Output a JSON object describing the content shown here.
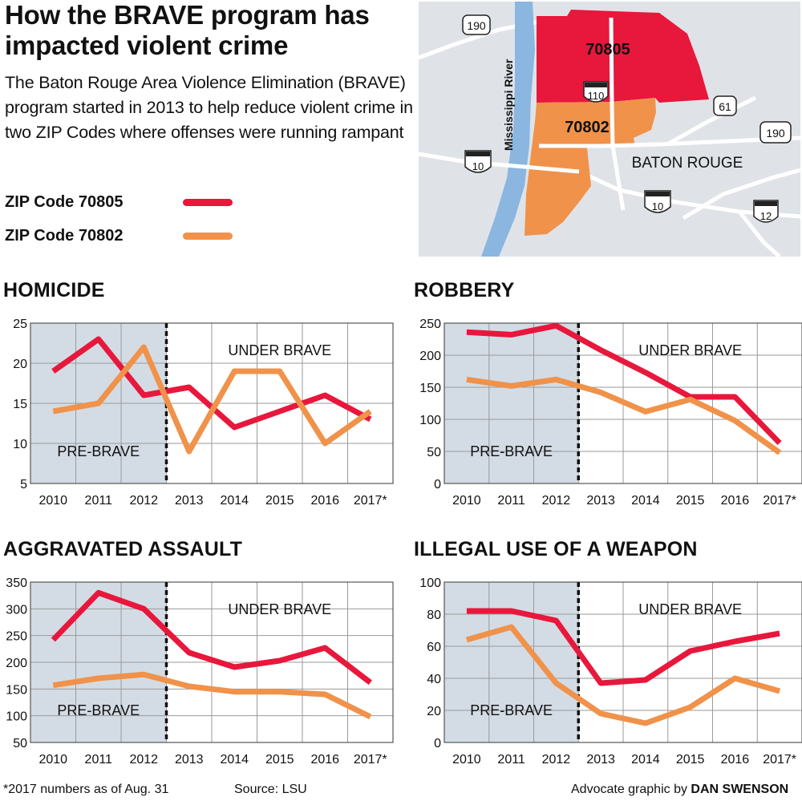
{
  "header": {
    "title": "How the BRAVE program has impacted violent crime",
    "subtitle": "The Baton Rouge Area Violence Elimination (BRAVE) program started in 2013 to help reduce violent crime in two ZIP Codes where offenses were running rampant"
  },
  "legend": [
    {
      "label": "ZIP Code 70805",
      "color": "#e8173c"
    },
    {
      "label": "ZIP Code 70802",
      "color": "#f0924a"
    }
  ],
  "map": {
    "labels": {
      "zip_70805": "70805",
      "zip_70802": "70802",
      "city": "BATON ROUGE",
      "river": "Mississippi River"
    },
    "highways": {
      "us190_west": "190",
      "us190_east": "190",
      "i110": "110",
      "us61": "61",
      "i10_west": "10",
      "i10_east": "10",
      "i12": "12"
    },
    "colors": {
      "zip_70805": "#e8173c",
      "zip_70802": "#f0924a",
      "river": "#8ab6e0",
      "land": "#dfe3e8",
      "road": "#ffffff"
    }
  },
  "chart_data": [
    {
      "type": "line",
      "title": "HOMICIDE",
      "categories": [
        "2010",
        "2011",
        "2012",
        "2013",
        "2014",
        "2015",
        "2016",
        "2017*"
      ],
      "series": [
        {
          "name": "ZIP Code 70805",
          "values": [
            19,
            23,
            16,
            17,
            12,
            14,
            16,
            13
          ]
        },
        {
          "name": "ZIP Code 70802",
          "values": [
            14,
            15,
            22,
            9,
            19,
            19,
            10,
            14
          ]
        }
      ],
      "yticks": [
        "5",
        "10",
        "15",
        "20",
        "25"
      ],
      "ylim": [
        5,
        25
      ],
      "pre_label": "PRE-BRAVE",
      "post_label": "UNDER BRAVE",
      "grid": true
    },
    {
      "type": "line",
      "title": "ROBBERY",
      "categories": [
        "2010",
        "2011",
        "2012",
        "2013",
        "2014",
        "2015",
        "2016",
        "2017*"
      ],
      "series": [
        {
          "name": "ZIP Code 70805",
          "values": [
            236,
            232,
            246,
            208,
            173,
            135,
            135,
            63
          ]
        },
        {
          "name": "ZIP Code 70802",
          "values": [
            162,
            152,
            162,
            142,
            112,
            131,
            98,
            48
          ]
        }
      ],
      "yticks": [
        "0",
        "50",
        "100",
        "150",
        "200",
        "250"
      ],
      "ylim": [
        0,
        250
      ],
      "pre_label": "PRE-BRAVE",
      "post_label": "UNDER BRAVE",
      "grid": true
    },
    {
      "type": "line",
      "title": "AGGRAVATED ASSAULT",
      "categories": [
        "2010",
        "2011",
        "2012",
        "2013",
        "2014",
        "2015",
        "2016",
        "2017*"
      ],
      "series": [
        {
          "name": "ZIP Code 70805",
          "values": [
            242,
            330,
            300,
            218,
            191,
            203,
            227,
            162
          ]
        },
        {
          "name": "ZIP Code 70802",
          "values": [
            157,
            170,
            177,
            155,
            145,
            145,
            140,
            98
          ]
        }
      ],
      "yticks": [
        "50",
        "100",
        "150",
        "200",
        "250",
        "300",
        "350"
      ],
      "ylim": [
        50,
        350
      ],
      "pre_label": "PRE-BRAVE",
      "post_label": "UNDER BRAVE",
      "grid": true
    },
    {
      "type": "line",
      "title": "ILLEGAL USE OF A WEAPON",
      "categories": [
        "2010",
        "2011",
        "2012",
        "2013",
        "2014",
        "2015",
        "2016",
        "2017*"
      ],
      "series": [
        {
          "name": "ZIP Code 70805",
          "values": [
            82,
            82,
            76,
            37,
            39,
            57,
            63,
            68
          ]
        },
        {
          "name": "ZIP Code 70802",
          "values": [
            64,
            72,
            37,
            18,
            12,
            22,
            40,
            32
          ]
        }
      ],
      "yticks": [
        "0",
        "20",
        "40",
        "60",
        "80",
        "100"
      ],
      "ylim": [
        0,
        100
      ],
      "pre_label": "PRE-BRAVE",
      "post_label": "UNDER BRAVE",
      "grid": true
    }
  ],
  "footer": {
    "note": "*2017 numbers as of Aug. 31",
    "source": "Source: LSU",
    "credit_prefix": "Advocate graphic by ",
    "credit_name": "DAN SWENSON"
  }
}
